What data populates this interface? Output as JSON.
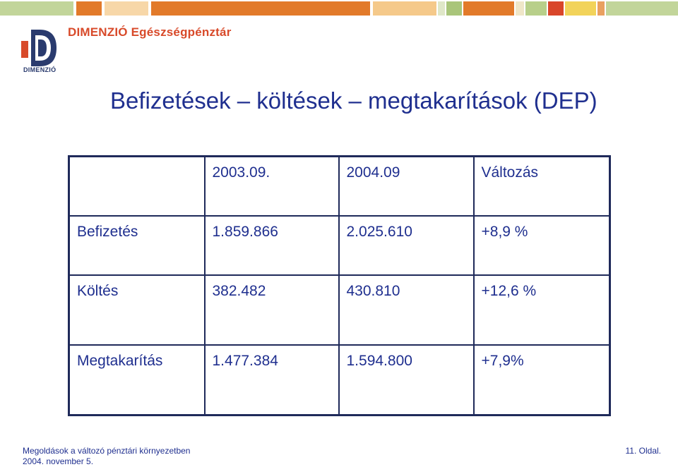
{
  "header": {
    "brand": "DIMENZIÓ Egészségpénztár",
    "logo_label": "DIMENZIÓ",
    "logo_icon": "dimenzio-logo-icon"
  },
  "colors": {
    "title": "#1f2f8f",
    "brand": "#d84a2a",
    "bar_green": "#b8cf8a",
    "bar_orange": "#e27a2a",
    "bar_peach": "#f5c98a",
    "bar_yellow": "#f2d35a",
    "bar_red": "#d9462a"
  },
  "slide": {
    "title": "Befizetések – költések – megtakarítások (DEP)"
  },
  "table": {
    "headers": [
      "",
      "2003.09.",
      "2004.09",
      "Változás"
    ],
    "rows": [
      [
        "Befizetés",
        "1.859.866",
        "2.025.610",
        "+8,9 %"
      ],
      [
        "Költés",
        "382.482",
        "430.810",
        "+12,6 %"
      ],
      [
        "Megtakarítás",
        "1.477.384",
        "1.594.800",
        "+7,9%"
      ]
    ]
  },
  "footer": {
    "line1": "Megoldások a változó pénztári környezetben",
    "line2": "2004. november 5.",
    "page": "11. Oldal."
  }
}
